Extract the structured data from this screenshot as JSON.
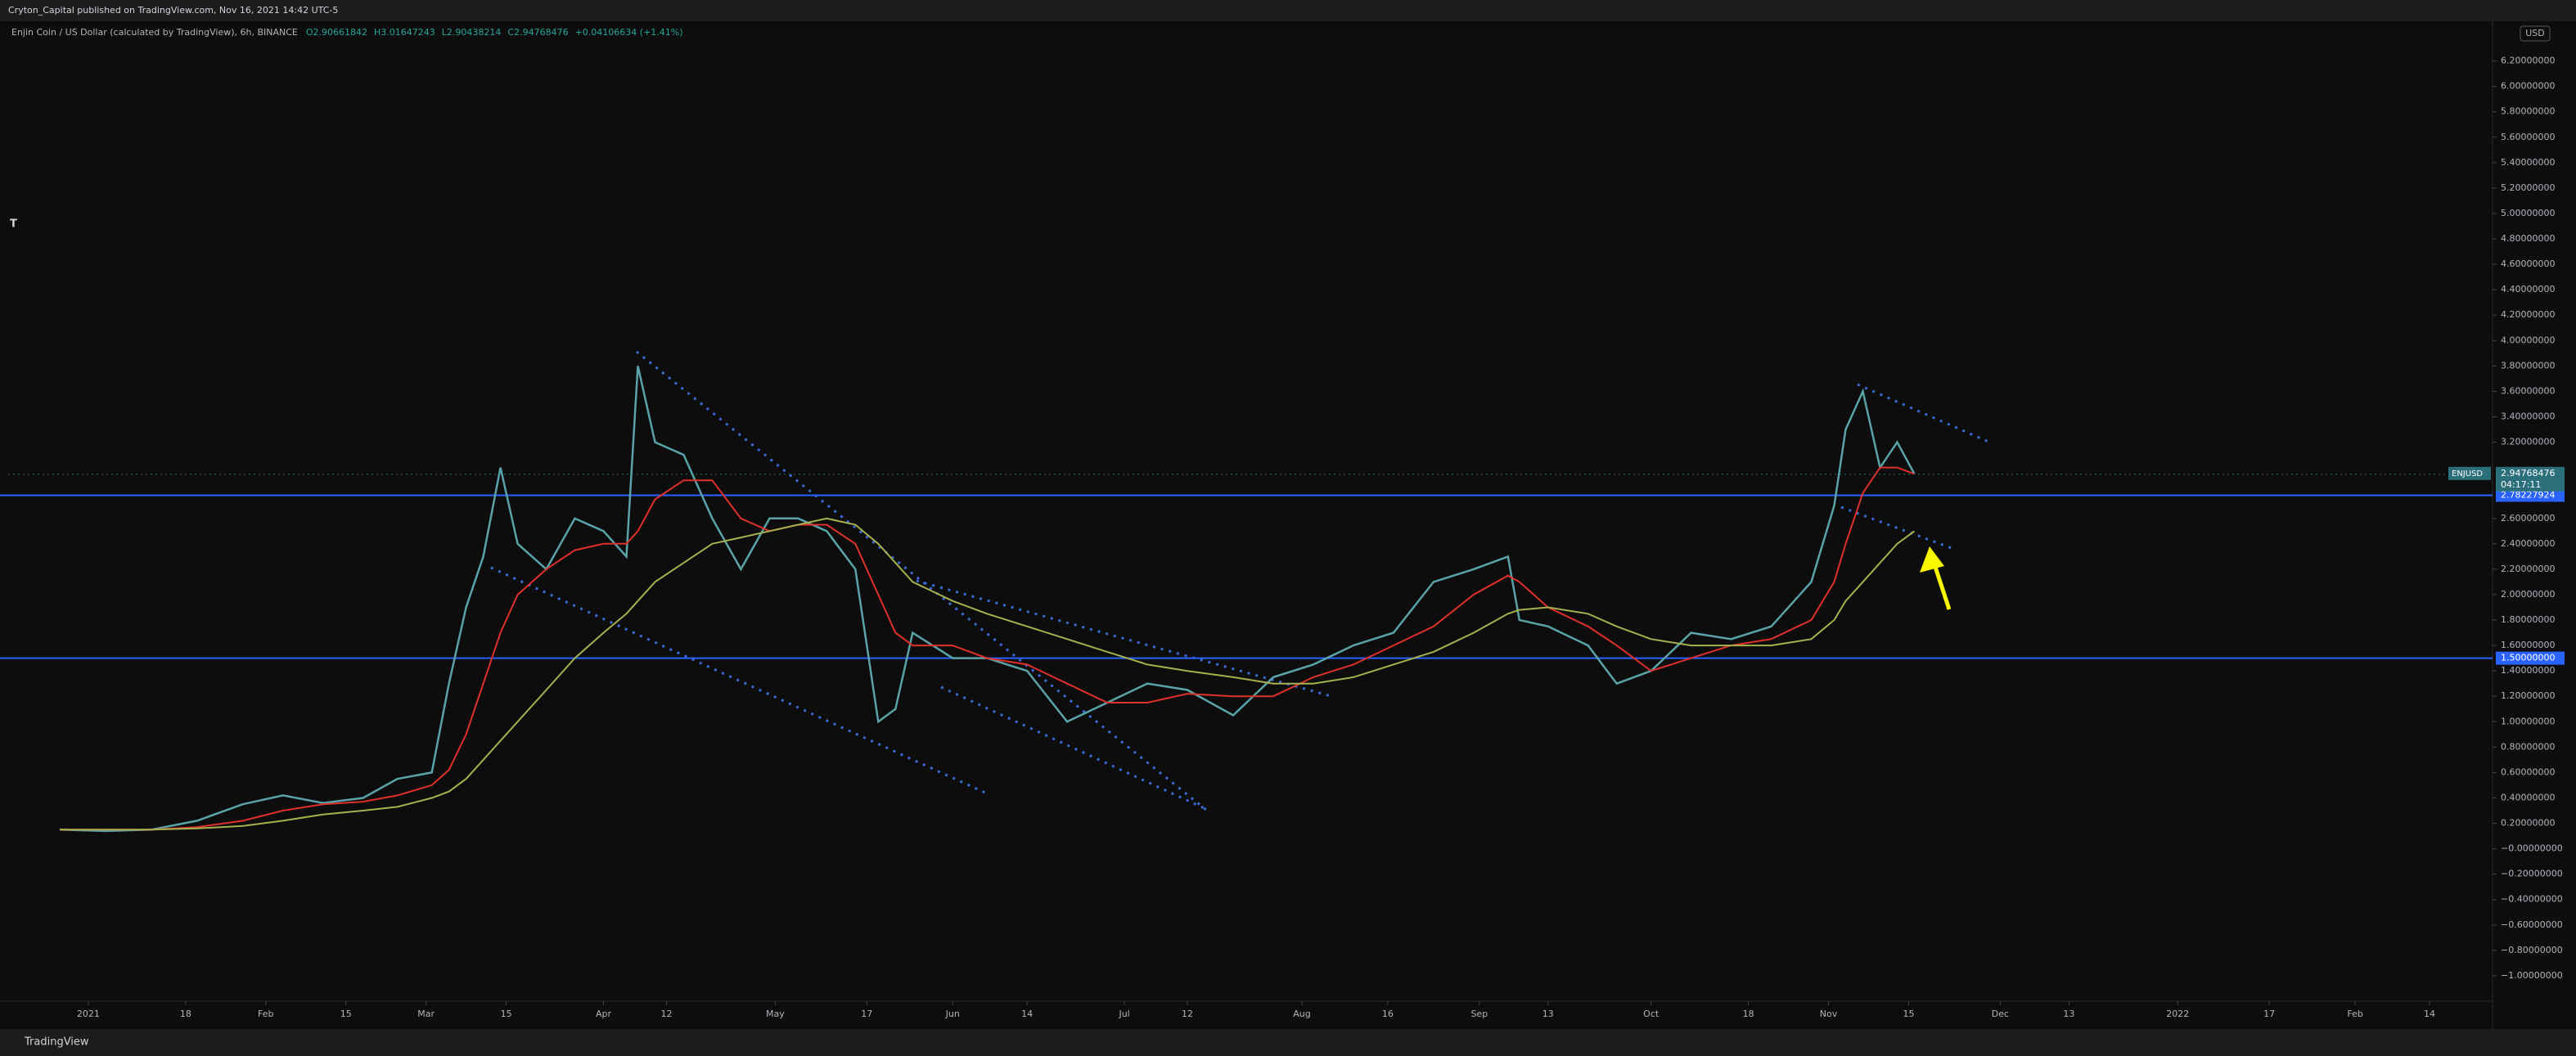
{
  "header": {
    "publisher": "Cryton_Capital published on TradingView.com, Nov 16, 2021 14:42 UTC-5"
  },
  "footer": {
    "brand": "TradingView"
  },
  "chart_data": {
    "type": "line",
    "title": "Enjin Coin / US Dollar (calculated by TradingView), 6h, BINANCE",
    "legend_values": [
      "O2.90661842",
      "H3.01647243",
      "L2.90438214",
      "C2.94768476",
      "+0.04106634 (+1.41%)"
    ],
    "scale_label": "USD",
    "x": [
      "2020-12-27",
      "2021-01-04",
      "2021-01-12",
      "2021-01-20",
      "2021-01-28",
      "2021-02-04",
      "2021-02-11",
      "2021-02-18",
      "2021-02-24",
      "2021-03-02",
      "2021-03-05",
      "2021-03-08",
      "2021-03-11",
      "2021-03-14",
      "2021-03-17",
      "2021-03-22",
      "2021-03-27",
      "2021-04-01",
      "2021-04-05",
      "2021-04-07",
      "2021-04-10",
      "2021-04-15",
      "2021-04-20",
      "2021-04-25",
      "2021-04-30",
      "2021-05-05",
      "2021-05-10",
      "2021-05-15",
      "2021-05-19",
      "2021-05-22",
      "2021-05-25",
      "2021-06-01",
      "2021-06-07",
      "2021-06-14",
      "2021-06-21",
      "2021-06-28",
      "2021-07-05",
      "2021-07-12",
      "2021-07-20",
      "2021-07-27",
      "2021-08-03",
      "2021-08-10",
      "2021-08-17",
      "2021-08-24",
      "2021-08-31",
      "2021-09-06",
      "2021-09-08",
      "2021-09-13",
      "2021-09-20",
      "2021-09-25",
      "2021-10-01",
      "2021-10-08",
      "2021-10-15",
      "2021-10-22",
      "2021-10-29",
      "2021-11-02",
      "2021-11-04",
      "2021-11-07",
      "2021-11-10",
      "2021-11-13",
      "2021-11-16"
    ],
    "series": [
      {
        "color": "#5aa3a8",
        "values": [
          0.15,
          0.14,
          0.15,
          0.22,
          0.35,
          0.42,
          0.36,
          0.4,
          0.55,
          0.6,
          1.3,
          1.9,
          2.3,
          3.0,
          2.4,
          2.2,
          2.6,
          2.5,
          2.3,
          3.8,
          3.2,
          3.1,
          2.6,
          2.2,
          2.6,
          2.6,
          2.5,
          2.2,
          1.0,
          1.1,
          1.7,
          1.5,
          1.5,
          1.4,
          1.0,
          1.15,
          1.3,
          1.25,
          1.05,
          1.35,
          1.45,
          1.6,
          1.7,
          2.1,
          2.2,
          2.3,
          1.8,
          1.75,
          1.6,
          1.3,
          1.4,
          1.7,
          1.65,
          1.75,
          2.1,
          2.7,
          3.3,
          3.6,
          3.0,
          3.2,
          2.95
        ]
      },
      {
        "color": "#e0302a",
        "values": [
          0.15,
          0.15,
          0.15,
          0.17,
          0.22,
          0.3,
          0.35,
          0.37,
          0.42,
          0.5,
          0.62,
          0.9,
          1.3,
          1.7,
          2.0,
          2.2,
          2.35,
          2.4,
          2.4,
          2.5,
          2.75,
          2.9,
          2.9,
          2.6,
          2.5,
          2.55,
          2.55,
          2.4,
          2.0,
          1.7,
          1.6,
          1.6,
          1.5,
          1.45,
          1.3,
          1.15,
          1.15,
          1.22,
          1.2,
          1.2,
          1.35,
          1.45,
          1.6,
          1.75,
          2.0,
          2.15,
          2.1,
          1.9,
          1.75,
          1.6,
          1.4,
          1.5,
          1.6,
          1.65,
          1.8,
          2.1,
          2.4,
          2.8,
          3.0,
          3.0,
          2.95
        ]
      },
      {
        "color": "#a7b04e",
        "values": [
          0.15,
          0.15,
          0.15,
          0.16,
          0.18,
          0.22,
          0.27,
          0.3,
          0.33,
          0.4,
          0.45,
          0.55,
          0.7,
          0.85,
          1.0,
          1.25,
          1.5,
          1.7,
          1.85,
          1.95,
          2.1,
          2.25,
          2.4,
          2.45,
          2.5,
          2.55,
          2.6,
          2.55,
          2.4,
          2.25,
          2.1,
          1.95,
          1.85,
          1.75,
          1.65,
          1.55,
          1.45,
          1.4,
          1.35,
          1.3,
          1.3,
          1.35,
          1.45,
          1.55,
          1.7,
          1.85,
          1.88,
          1.9,
          1.85,
          1.75,
          1.65,
          1.6,
          1.6,
          1.6,
          1.65,
          1.8,
          1.95,
          2.1,
          2.25,
          2.4,
          2.5
        ]
      }
    ],
    "xlim": [
      "2020-12-18",
      "2022-02-25"
    ],
    "xticks": [
      {
        "value": "2021-01-01",
        "label": "2021"
      },
      {
        "value": "2021-01-18",
        "label": "18"
      },
      {
        "value": "2021-02-01",
        "label": "Feb"
      },
      {
        "value": "2021-02-15",
        "label": "15"
      },
      {
        "value": "2021-03-01",
        "label": "Mar"
      },
      {
        "value": "2021-03-15",
        "label": "15"
      },
      {
        "value": "2021-04-01",
        "label": "Apr"
      },
      {
        "value": "2021-04-12",
        "label": "12"
      },
      {
        "value": "2021-05-01",
        "label": "May"
      },
      {
        "value": "2021-05-17",
        "label": "17"
      },
      {
        "value": "2021-06-01",
        "label": "Jun"
      },
      {
        "value": "2021-06-14",
        "label": "14"
      },
      {
        "value": "2021-07-01",
        "label": "Jul"
      },
      {
        "value": "2021-07-12",
        "label": "12"
      },
      {
        "value": "2021-08-01",
        "label": "Aug"
      },
      {
        "value": "2021-08-16",
        "label": "16"
      },
      {
        "value": "2021-09-01",
        "label": "Sep"
      },
      {
        "value": "2021-09-13",
        "label": "13"
      },
      {
        "value": "2021-10-01",
        "label": "Oct"
      },
      {
        "value": "2021-10-18",
        "label": "18"
      },
      {
        "value": "2021-11-01",
        "label": "Nov"
      },
      {
        "value": "2021-11-15",
        "label": "15"
      },
      {
        "value": "2021-12-01",
        "label": "Dec"
      },
      {
        "value": "2021-12-13",
        "label": "13"
      },
      {
        "value": "2022-01-01",
        "label": "2022"
      },
      {
        "value": "2022-01-17",
        "label": "17"
      },
      {
        "value": "2022-02-01",
        "label": "Feb"
      },
      {
        "value": "2022-02-14",
        "label": "14"
      }
    ],
    "ylim": [
      -1.2,
      6.5
    ],
    "yticks": [
      {
        "value": 6.2,
        "label": "6.20000000"
      },
      {
        "value": 6.0,
        "label": "6.00000000"
      },
      {
        "value": 5.8,
        "label": "5.80000000"
      },
      {
        "value": 5.6,
        "label": "5.60000000"
      },
      {
        "value": 5.4,
        "label": "5.40000000"
      },
      {
        "value": 5.2,
        "label": "5.20000000"
      },
      {
        "value": 5.0,
        "label": "5.00000000"
      },
      {
        "value": 4.8,
        "label": "4.80000000"
      },
      {
        "value": 4.6,
        "label": "4.60000000"
      },
      {
        "value": 4.4,
        "label": "4.40000000"
      },
      {
        "value": 4.2,
        "label": "4.20000000"
      },
      {
        "value": 4.0,
        "label": "4.00000000"
      },
      {
        "value": 3.8,
        "label": "3.80000000"
      },
      {
        "value": 3.6,
        "label": "3.60000000"
      },
      {
        "value": 3.4,
        "label": "3.40000000"
      },
      {
        "value": 3.2,
        "label": "3.20000000"
      },
      {
        "value": 2.6,
        "label": "2.60000000"
      },
      {
        "value": 2.4,
        "label": "2.40000000"
      },
      {
        "value": 2.2,
        "label": "2.20000000"
      },
      {
        "value": 2.0,
        "label": "2.00000000"
      },
      {
        "value": 1.8,
        "label": "1.80000000"
      },
      {
        "value": 1.6,
        "label": "1.60000000"
      },
      {
        "value": 1.4,
        "label": "1.40000000"
      },
      {
        "value": 1.2,
        "label": "1.20000000"
      },
      {
        "value": 1.0,
        "label": "1.00000000"
      },
      {
        "value": 0.8,
        "label": "0.80000000"
      },
      {
        "value": 0.6,
        "label": "0.60000000"
      },
      {
        "value": 0.4,
        "label": "0.40000000"
      },
      {
        "value": 0.2,
        "label": "0.20000000"
      },
      {
        "value": 0,
        "label": "−0.00000000"
      },
      {
        "value": -0.2,
        "label": "−0.20000000"
      },
      {
        "value": -0.4,
        "label": "−0.40000000"
      },
      {
        "value": -0.6,
        "label": "−0.60000000"
      },
      {
        "value": -0.8,
        "label": "−0.80000000"
      },
      {
        "value": -1.0,
        "label": "−1.00000000"
      }
    ],
    "price_lines": [
      {
        "value": 2.78227924,
        "label": "2.78227924",
        "color": "#2962ff"
      },
      {
        "value": 1.5,
        "label": "1.50000000",
        "color": "#2962ff"
      }
    ],
    "last_price": {
      "value": 2.94768476,
      "label": "2.94768476",
      "symbol": "ENJUSD",
      "countdown": "04:17:11",
      "color": "#2a6f7a"
    }
  }
}
